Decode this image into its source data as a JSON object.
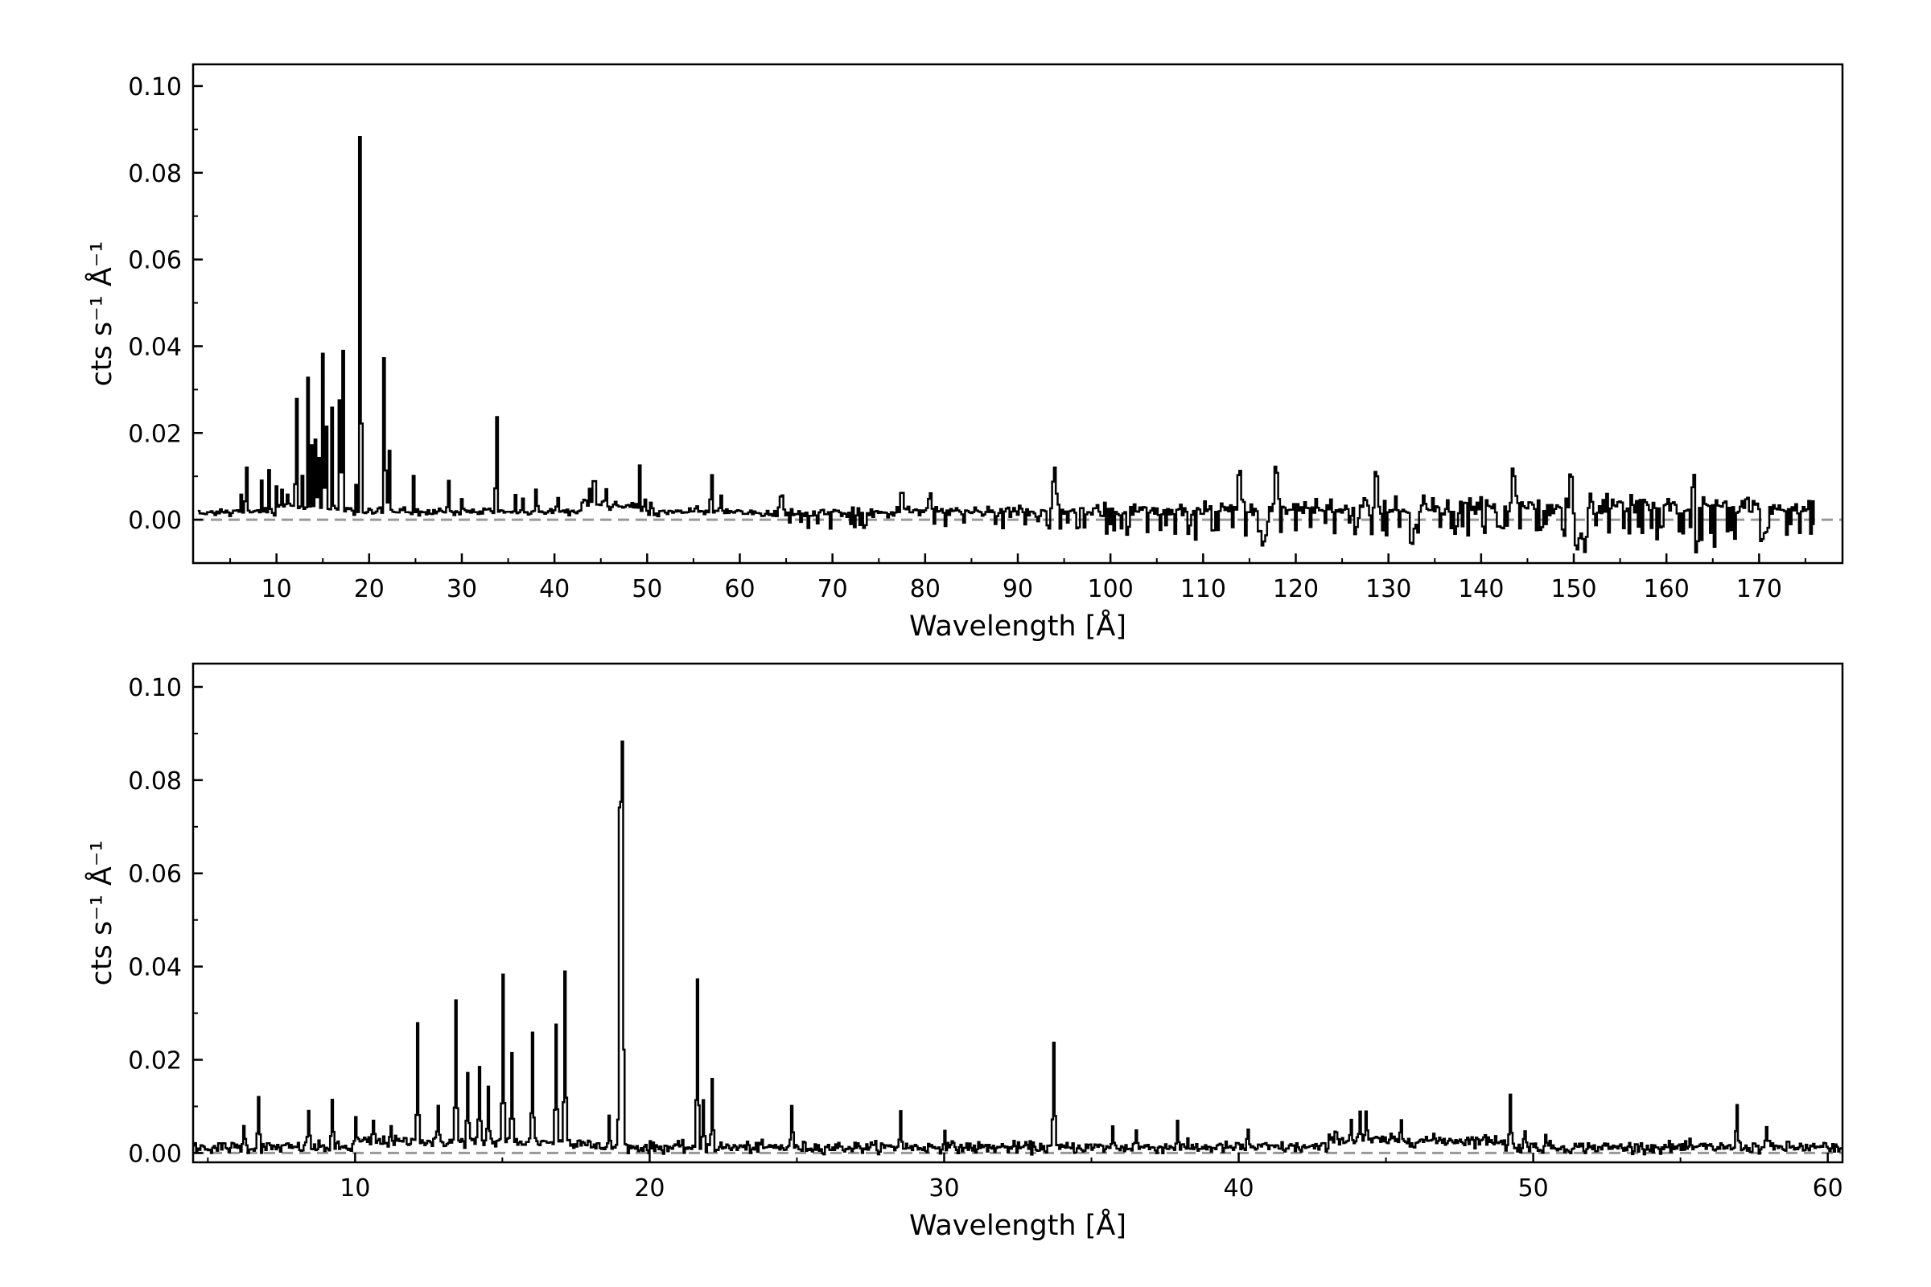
{
  "chart_data": [
    {
      "type": "line",
      "xlabel": "Wavelength  [Å]",
      "ylabel": "cts s⁻¹ Å⁻¹",
      "xlim": [
        1,
        179
      ],
      "ylim": [
        -0.01,
        0.105
      ],
      "xticks": [
        10,
        20,
        30,
        40,
        50,
        60,
        70,
        80,
        90,
        100,
        110,
        120,
        130,
        140,
        150,
        160,
        170
      ],
      "xtick_labels": [
        "10",
        "20",
        "30",
        "40",
        "50",
        "60",
        "70",
        "80",
        "90",
        "100",
        "110",
        "120",
        "130",
        "140",
        "150",
        "160",
        "170"
      ],
      "yticks": [
        0.0,
        0.02,
        0.04,
        0.06,
        0.08,
        0.1
      ],
      "ytick_labels": [
        "0.00",
        "0.02",
        "0.04",
        "0.06",
        "0.08",
        "0.10"
      ],
      "x_range_data": [
        1.5,
        176
      ],
      "baseline": 0.0,
      "grid": false,
      "lines": [
        {
          "x": 6.2,
          "y": 0.006
        },
        {
          "x": 6.7,
          "y": 0.0125
        },
        {
          "x": 8.4,
          "y": 0.0095
        },
        {
          "x": 9.2,
          "y": 0.0115
        },
        {
          "x": 10.0,
          "y": 0.007
        },
        {
          "x": 10.6,
          "y": 0.007
        },
        {
          "x": 11.2,
          "y": 0.006
        },
        {
          "x": 12.1,
          "y": 0.029
        },
        {
          "x": 12.8,
          "y": 0.009
        },
        {
          "x": 13.4,
          "y": 0.032
        },
        {
          "x": 13.8,
          "y": 0.018
        },
        {
          "x": 14.2,
          "y": 0.018
        },
        {
          "x": 14.5,
          "y": 0.014
        },
        {
          "x": 15.0,
          "y": 0.038
        },
        {
          "x": 15.3,
          "y": 0.021
        },
        {
          "x": 16.0,
          "y": 0.026
        },
        {
          "x": 16.8,
          "y": 0.028
        },
        {
          "x": 17.1,
          "y": 0.0395
        },
        {
          "x": 18.6,
          "y": 0.007
        },
        {
          "x": 18.97,
          "y": 0.0915
        },
        {
          "x": 19.05,
          "y": 0.085
        },
        {
          "x": 21.6,
          "y": 0.0365
        },
        {
          "x": 21.8,
          "y": 0.0115
        },
        {
          "x": 22.1,
          "y": 0.016
        },
        {
          "x": 24.8,
          "y": 0.01
        },
        {
          "x": 28.5,
          "y": 0.009
        },
        {
          "x": 30.0,
          "y": 0.005
        },
        {
          "x": 33.7,
          "y": 0.0235
        },
        {
          "x": 35.7,
          "y": 0.005
        },
        {
          "x": 36.5,
          "y": 0.005
        },
        {
          "x": 37.9,
          "y": 0.007
        },
        {
          "x": 40.3,
          "y": 0.005
        },
        {
          "x": 43.3,
          "y": 0.006
        },
        {
          "x": 43.8,
          "y": 0.007
        },
        {
          "x": 44.1,
          "y": 0.009
        },
        {
          "x": 44.3,
          "y": 0.008
        },
        {
          "x": 45.5,
          "y": 0.0065
        },
        {
          "x": 49.2,
          "y": 0.0125
        },
        {
          "x": 49.7,
          "y": 0.006
        },
        {
          "x": 50.4,
          "y": 0.004
        },
        {
          "x": 56.9,
          "y": 0.011
        },
        {
          "x": 57.9,
          "y": 0.0055
        },
        {
          "x": 64.5,
          "y": 0.005
        },
        {
          "x": 77.5,
          "y": 0.005
        },
        {
          "x": 80.5,
          "y": 0.006
        },
        {
          "x": 93.9,
          "y": 0.01
        },
        {
          "x": 113.9,
          "y": 0.01
        },
        {
          "x": 117.9,
          "y": 0.01
        },
        {
          "x": 128.7,
          "y": 0.0095
        },
        {
          "x": 143.5,
          "y": 0.01
        },
        {
          "x": 149.6,
          "y": 0.009
        },
        {
          "x": 162.9,
          "y": 0.0095
        }
      ],
      "dips": [
        {
          "x": 116.5,
          "y": -0.005
        },
        {
          "x": 132.5,
          "y": -0.0055
        },
        {
          "x": 150.4,
          "y": -0.0085
        },
        {
          "x": 151.0,
          "y": -0.006
        },
        {
          "x": 163.2,
          "y": -0.0065
        }
      ]
    },
    {
      "type": "line",
      "xlabel": "Wavelength [Å]",
      "ylabel": "cts s⁻¹ Å⁻¹",
      "xlim": [
        4.5,
        60.5
      ],
      "ylim": [
        -0.002,
        0.105
      ],
      "xticks": [
        10,
        20,
        30,
        40,
        50,
        60
      ],
      "xtick_labels": [
        "10",
        "20",
        "30",
        "40",
        "50",
        "60"
      ],
      "yticks": [
        0.0,
        0.02,
        0.04,
        0.06,
        0.08,
        0.1
      ],
      "ytick_labels": [
        "0.00",
        "0.02",
        "0.04",
        "0.06",
        "0.08",
        "0.10"
      ],
      "x_range_data": [
        4.5,
        60.5
      ],
      "baseline": 0.0,
      "grid": false
    }
  ]
}
